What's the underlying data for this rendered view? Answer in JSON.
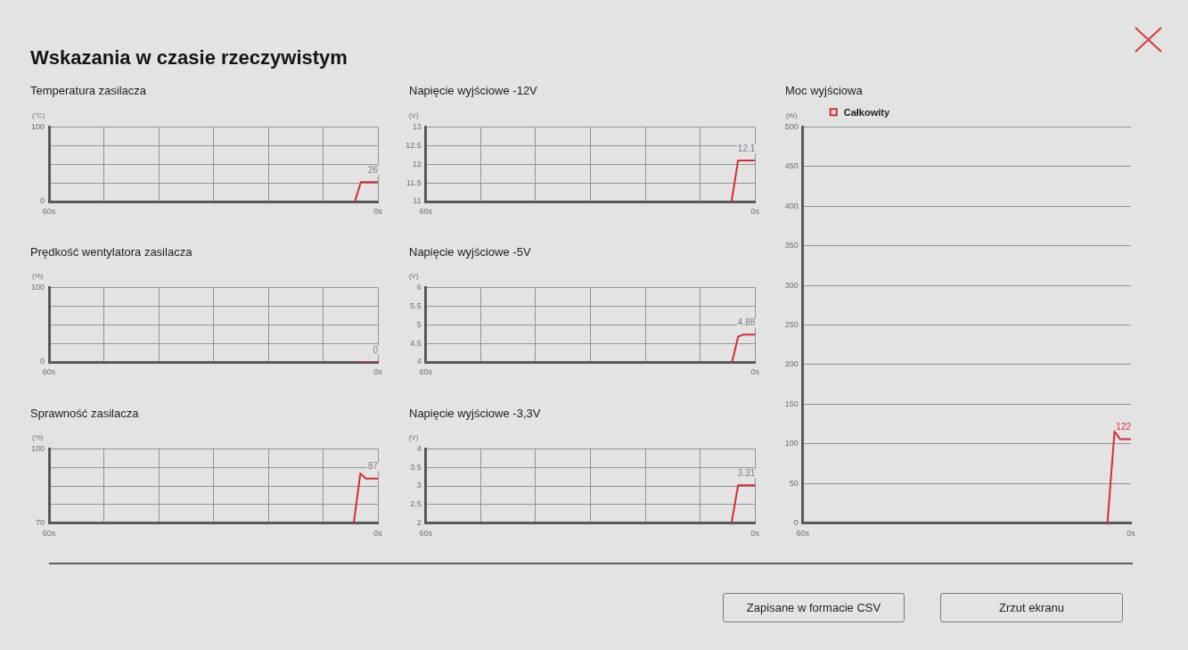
{
  "chart_data": [
    {
      "type": "other",
      "title": "Wskazania w czasie rzeczywistym"
    },
    {
      "type": "line",
      "title": "Temperatura zasilacza",
      "ylabel": "(°C)",
      "x": [
        4.2,
        3.1,
        0
      ],
      "values": [
        0,
        26,
        26
      ],
      "color": "#d52b32",
      "xlim": [
        60,
        0
      ],
      "xticks": [
        {
          "value": 60,
          "label": "60s"
        },
        {
          "value": 50,
          "label": null
        },
        {
          "value": 40,
          "label": null
        },
        {
          "value": 30,
          "label": null
        },
        {
          "value": 20,
          "label": null
        },
        {
          "value": 10,
          "label": null
        },
        {
          "value": 0,
          "label": "0s"
        }
      ],
      "ylim": [
        0,
        100
      ],
      "yticks": [
        0,
        {
          "value": 25,
          "label": null
        },
        {
          "value": 50,
          "label": null
        },
        {
          "value": 75,
          "label": null
        },
        100
      ],
      "grid": true,
      "annotations": [
        "26"
      ]
    },
    {
      "type": "line",
      "title": "Napięcie wyjściowe -12V",
      "ylabel": "(V)",
      "x": [
        4.3,
        3.1,
        0
      ],
      "values": [
        11,
        12.1,
        12.1
      ],
      "color": "#d52b32",
      "xlim": [
        60,
        0
      ],
      "xticks": [
        {
          "value": 60,
          "label": "60s"
        },
        {
          "value": 50,
          "label": null
        },
        {
          "value": 40,
          "label": null
        },
        {
          "value": 30,
          "label": null
        },
        {
          "value": 20,
          "label": null
        },
        {
          "value": 10,
          "label": null
        },
        {
          "value": 0,
          "label": "0s"
        }
      ],
      "ylim": [
        11,
        13
      ],
      "yticks": [
        11,
        11.5,
        12,
        12.5,
        13
      ],
      "grid": true,
      "annotations": [
        "12.1"
      ]
    },
    {
      "type": "line",
      "title": "Moc wyjściowa",
      "ylabel": "(W)",
      "x": [
        4.3,
        3.0,
        2.0,
        0
      ],
      "series": [
        {
          "name": "Całkowity",
          "color": "#d52b32",
          "values": [
            0,
            116,
            106,
            106
          ]
        }
      ],
      "xlim": [
        60,
        0
      ],
      "xticks": [
        {
          "value": 60,
          "label": "60s"
        },
        {
          "value": 0,
          "label": "0s"
        }
      ],
      "ylim": [
        0,
        500
      ],
      "yticks": [
        0,
        50,
        100,
        150,
        200,
        250,
        300,
        350,
        400,
        450,
        500
      ],
      "grid": "y",
      "legend": "top left",
      "annotations": [
        "122"
      ]
    },
    {
      "type": "line",
      "title": "Prędkość wentylatora zasilacza",
      "ylabel": "(%)",
      "x": [
        3.6,
        0
      ],
      "values": [
        0,
        0
      ],
      "color": "#d52b32",
      "xlim": [
        60,
        0
      ],
      "xticks": [
        {
          "value": 60,
          "label": "60s"
        },
        {
          "value": 50,
          "label": null
        },
        {
          "value": 40,
          "label": null
        },
        {
          "value": 30,
          "label": null
        },
        {
          "value": 20,
          "label": null
        },
        {
          "value": 10,
          "label": null
        },
        {
          "value": 0,
          "label": "0s"
        }
      ],
      "ylim": [
        0,
        100
      ],
      "yticks": [
        0,
        {
          "value": 25,
          "label": null
        },
        {
          "value": 50,
          "label": null
        },
        {
          "value": 75,
          "label": null
        },
        100
      ],
      "grid": true,
      "annotations": [
        "0"
      ]
    },
    {
      "type": "line",
      "title": "Napięcie wyjściowe -5V",
      "ylabel": "(V)",
      "x": [
        4.2,
        3.1,
        2.1,
        0
      ],
      "values": [
        4,
        4.68,
        4.74,
        4.74
      ],
      "color": "#d52b32",
      "xlim": [
        60,
        0
      ],
      "xticks": [
        {
          "value": 60,
          "label": "60s"
        },
        {
          "value": 50,
          "label": null
        },
        {
          "value": 40,
          "label": null
        },
        {
          "value": 30,
          "label": null
        },
        {
          "value": 20,
          "label": null
        },
        {
          "value": 10,
          "label": null
        },
        {
          "value": 0,
          "label": "0s"
        }
      ],
      "ylim": [
        4,
        6
      ],
      "yticks": [
        4,
        4.5,
        5,
        5.5,
        6
      ],
      "grid": true,
      "annotations": [
        "4.88"
      ]
    },
    {
      "type": "line",
      "title": "Sprawność zasilacza",
      "ylabel": "(%)",
      "x": [
        4.4,
        3.2,
        2.2,
        0
      ],
      "values": [
        70,
        90,
        88,
        88
      ],
      "color": "#d52b32",
      "xlim": [
        60,
        0
      ],
      "xticks": [
        {
          "value": 60,
          "label": "60s"
        },
        {
          "value": 50,
          "label": null
        },
        {
          "value": 40,
          "label": null
        },
        {
          "value": 30,
          "label": null
        },
        {
          "value": 20,
          "label": null
        },
        {
          "value": 10,
          "label": null
        },
        {
          "value": 0,
          "label": "0s"
        }
      ],
      "ylim": [
        70,
        100
      ],
      "yticks": [
        70,
        {
          "value": 77.5,
          "label": null
        },
        {
          "value": 85,
          "label": null
        },
        {
          "value": 92.5,
          "label": null
        },
        100
      ],
      "grid": true,
      "annotations": [
        "87"
      ]
    },
    {
      "type": "line",
      "title": "Napięcie wyjściowe -3,3V",
      "ylabel": "(V)",
      "x": [
        4.3,
        3.1,
        0
      ],
      "values": [
        2,
        3.02,
        3.02
      ],
      "color": "#d52b32",
      "xlim": [
        60,
        0
      ],
      "xticks": [
        {
          "value": 60,
          "label": "60s"
        },
        {
          "value": 50,
          "label": null
        },
        {
          "value": 40,
          "label": null
        },
        {
          "value": 30,
          "label": null
        },
        {
          "value": 20,
          "label": null
        },
        {
          "value": 10,
          "label": null
        },
        {
          "value": 0,
          "label": "0s"
        }
      ],
      "ylim": [
        2,
        4
      ],
      "yticks": [
        2,
        2.5,
        3,
        3.5,
        4
      ],
      "grid": true,
      "annotations": [
        "3.31"
      ]
    },
    {
      "type": "other",
      "annotations": [
        "Zapisane w formacie CSV",
        "Zrzut ekranu"
      ]
    }
  ]
}
